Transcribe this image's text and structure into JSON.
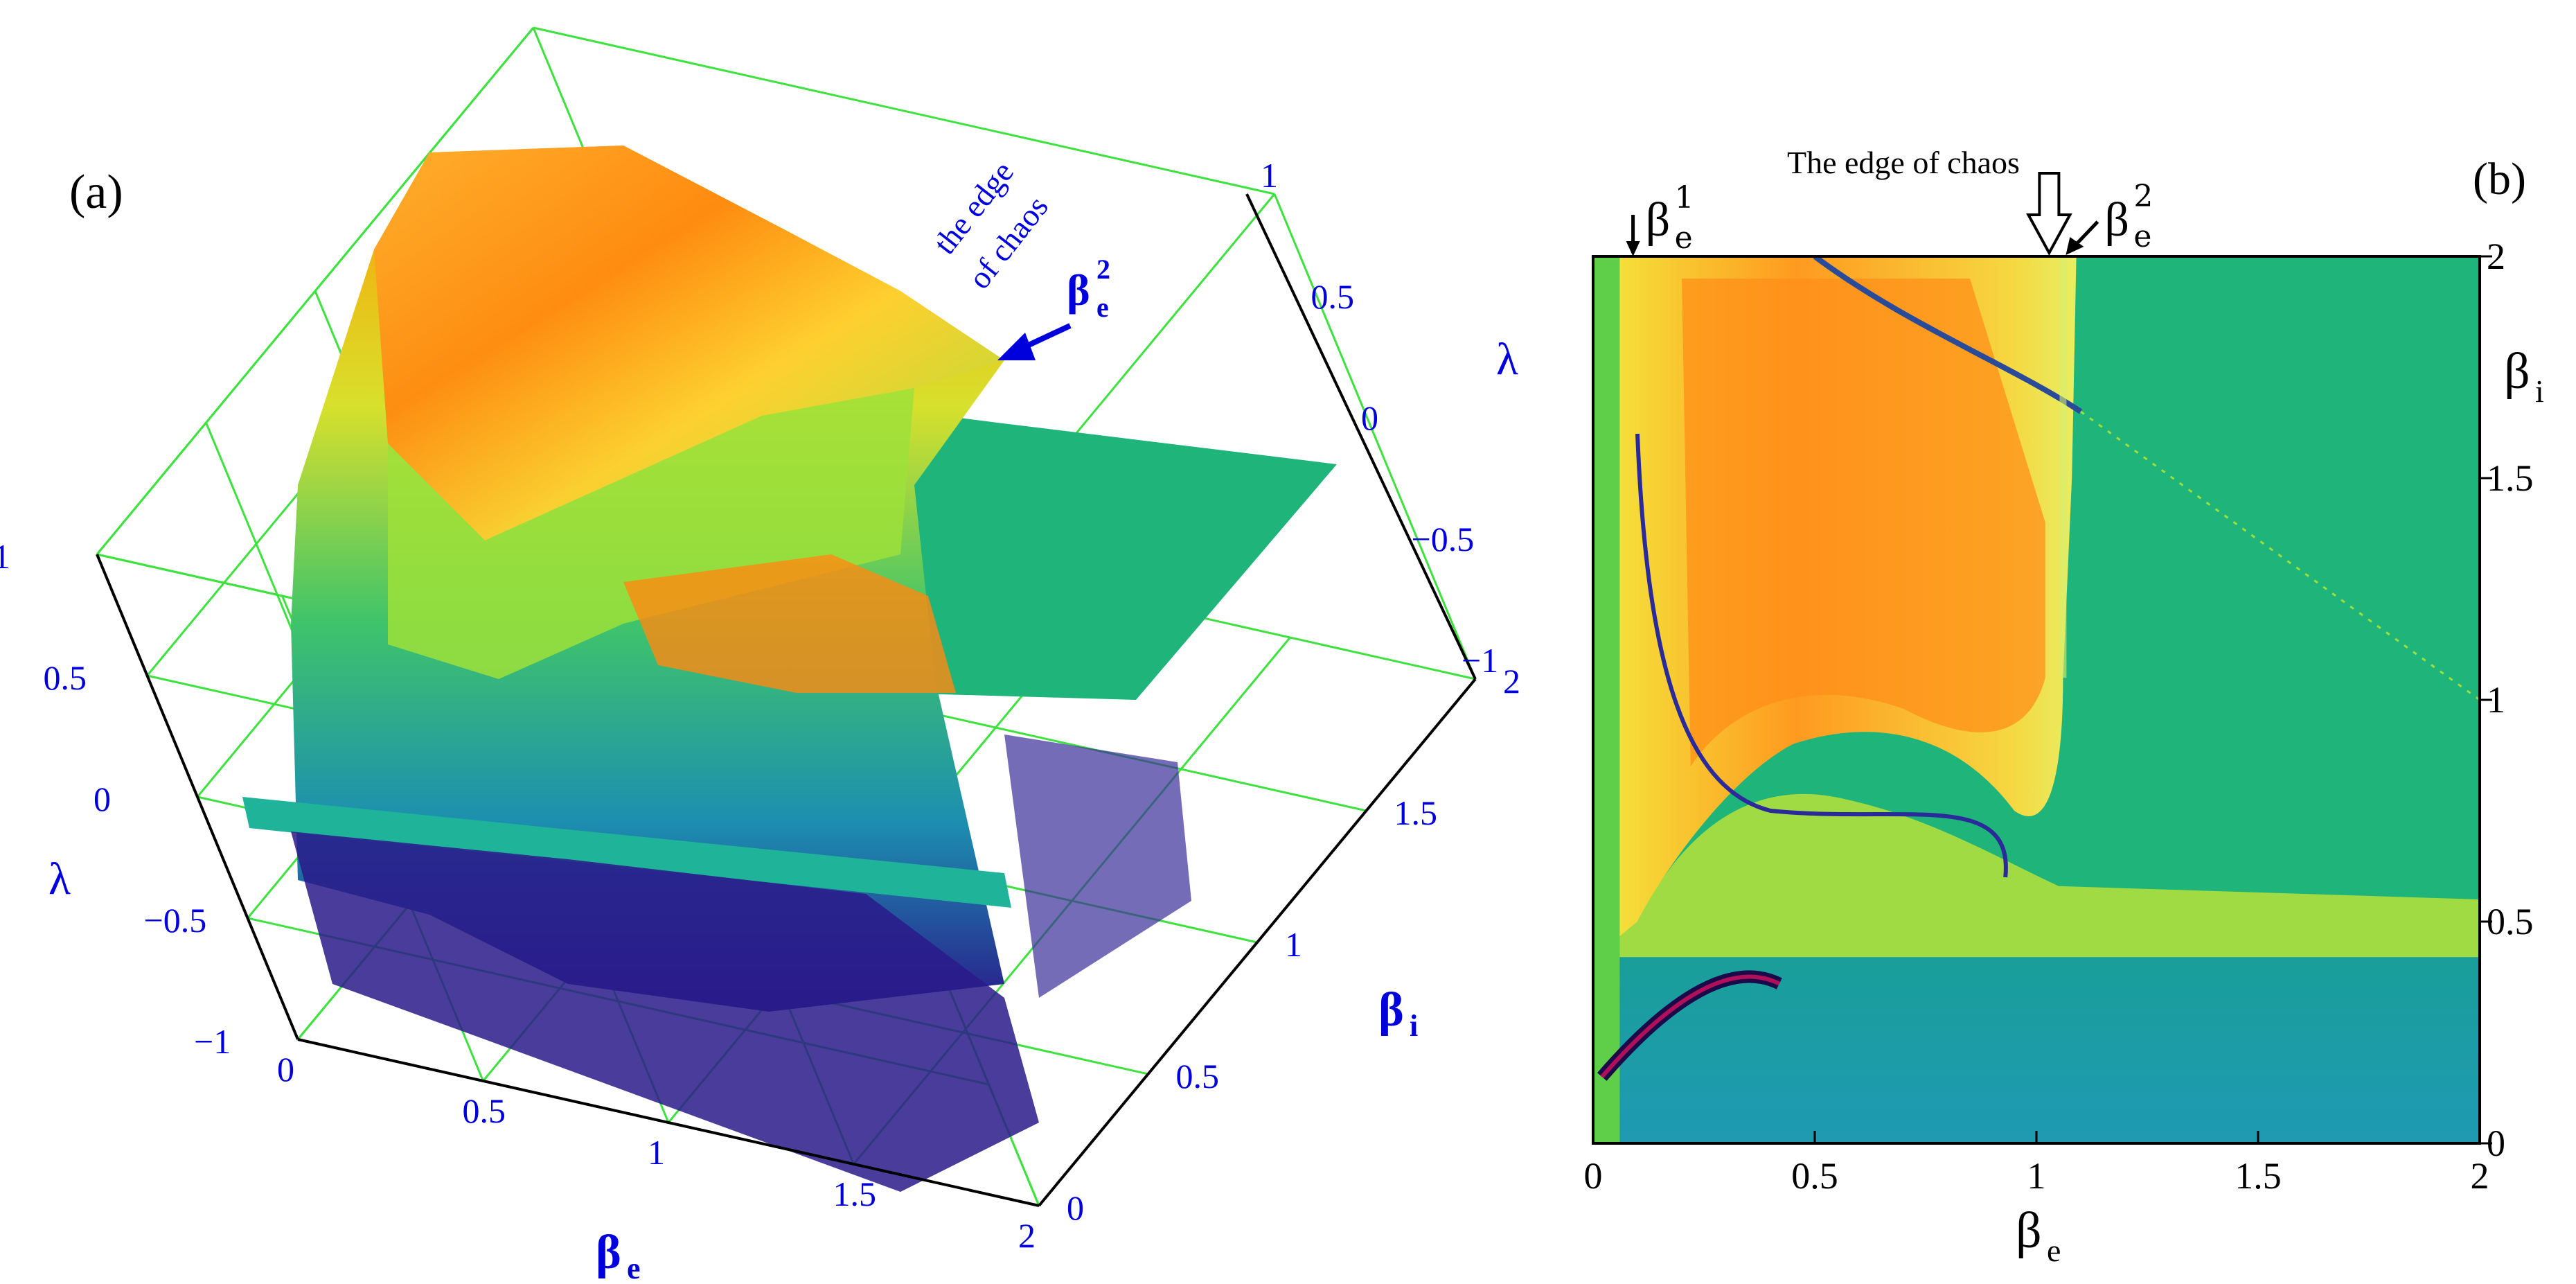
{
  "colors": {
    "low": "#2a0a8a",
    "mid_low": "#1aa0b5",
    "zero": "#1fb47a",
    "mid_high": "#b8e23a",
    "high": "#ff6a00",
    "grid3d": "#3ee23e",
    "axis_text3d": "#0000dd"
  },
  "panel_a": {
    "label": "(a)",
    "annotation": {
      "line1": "the edge",
      "line2": "of chaos",
      "marker_base": "β",
      "marker_sub": "e",
      "marker_sup": "2"
    },
    "axes": {
      "lambda": "λ",
      "beta_e": "β",
      "beta_e_sub": "e",
      "beta_i": "β",
      "beta_i_sub": "i"
    }
  },
  "panel_b": {
    "label": "(b)",
    "title": "The edge of chaos",
    "markers": [
      {
        "base": "β",
        "sub": "e",
        "sup": "1",
        "beta_e": 0.09
      },
      {
        "base": "β",
        "sub": "e",
        "sup": "2",
        "beta_e": 1.06
      }
    ],
    "ylabel_base": "β",
    "ylabel_sub": "i",
    "xlabel_base": "β",
    "xlabel_sub": "e"
  },
  "chart_data": [
    {
      "type": "surface",
      "panel": "a",
      "x_axis": {
        "label": "β_e",
        "range": [
          0,
          2
        ],
        "ticks": [
          "0",
          "0.5",
          "1",
          "1.5",
          "2"
        ]
      },
      "y_axis": {
        "label": "β_i",
        "range": [
          0,
          2
        ],
        "ticks": [
          "0",
          "0.5",
          "1",
          "1.5",
          "2"
        ]
      },
      "z_axis_left": {
        "label": "λ",
        "range": [
          -1,
          1
        ],
        "ticks": [
          "−1",
          "−0.5",
          "0",
          "0.5",
          "1"
        ]
      },
      "z_axis_right": {
        "label": "λ",
        "range": [
          -1,
          1
        ],
        "ticks": [
          "−1",
          "−0.5",
          "0",
          "0.5",
          "1"
        ]
      },
      "annotation": {
        "text": "the edge of chaos",
        "at_beta_e": 1.06,
        "at_beta_i": 2
      }
    },
    {
      "type": "heatmap",
      "panel": "b",
      "title": "The edge of chaos",
      "x_axis": {
        "label": "β_e",
        "range": [
          0,
          2
        ],
        "ticks": [
          "0",
          "0.5",
          "1",
          "1.5",
          "2"
        ]
      },
      "y_axis": {
        "label": "β_i",
        "range": [
          0,
          2
        ],
        "ticks": [
          "0",
          "0.5",
          "1",
          "1.5",
          "2"
        ],
        "side": "right"
      },
      "markers": [
        {
          "label": "β_e^1",
          "beta_e": 0.09
        },
        {
          "label": "β_e^2",
          "beta_e": 1.06
        }
      ],
      "edge_of_chaos_beta_e": 1.06
    }
  ]
}
